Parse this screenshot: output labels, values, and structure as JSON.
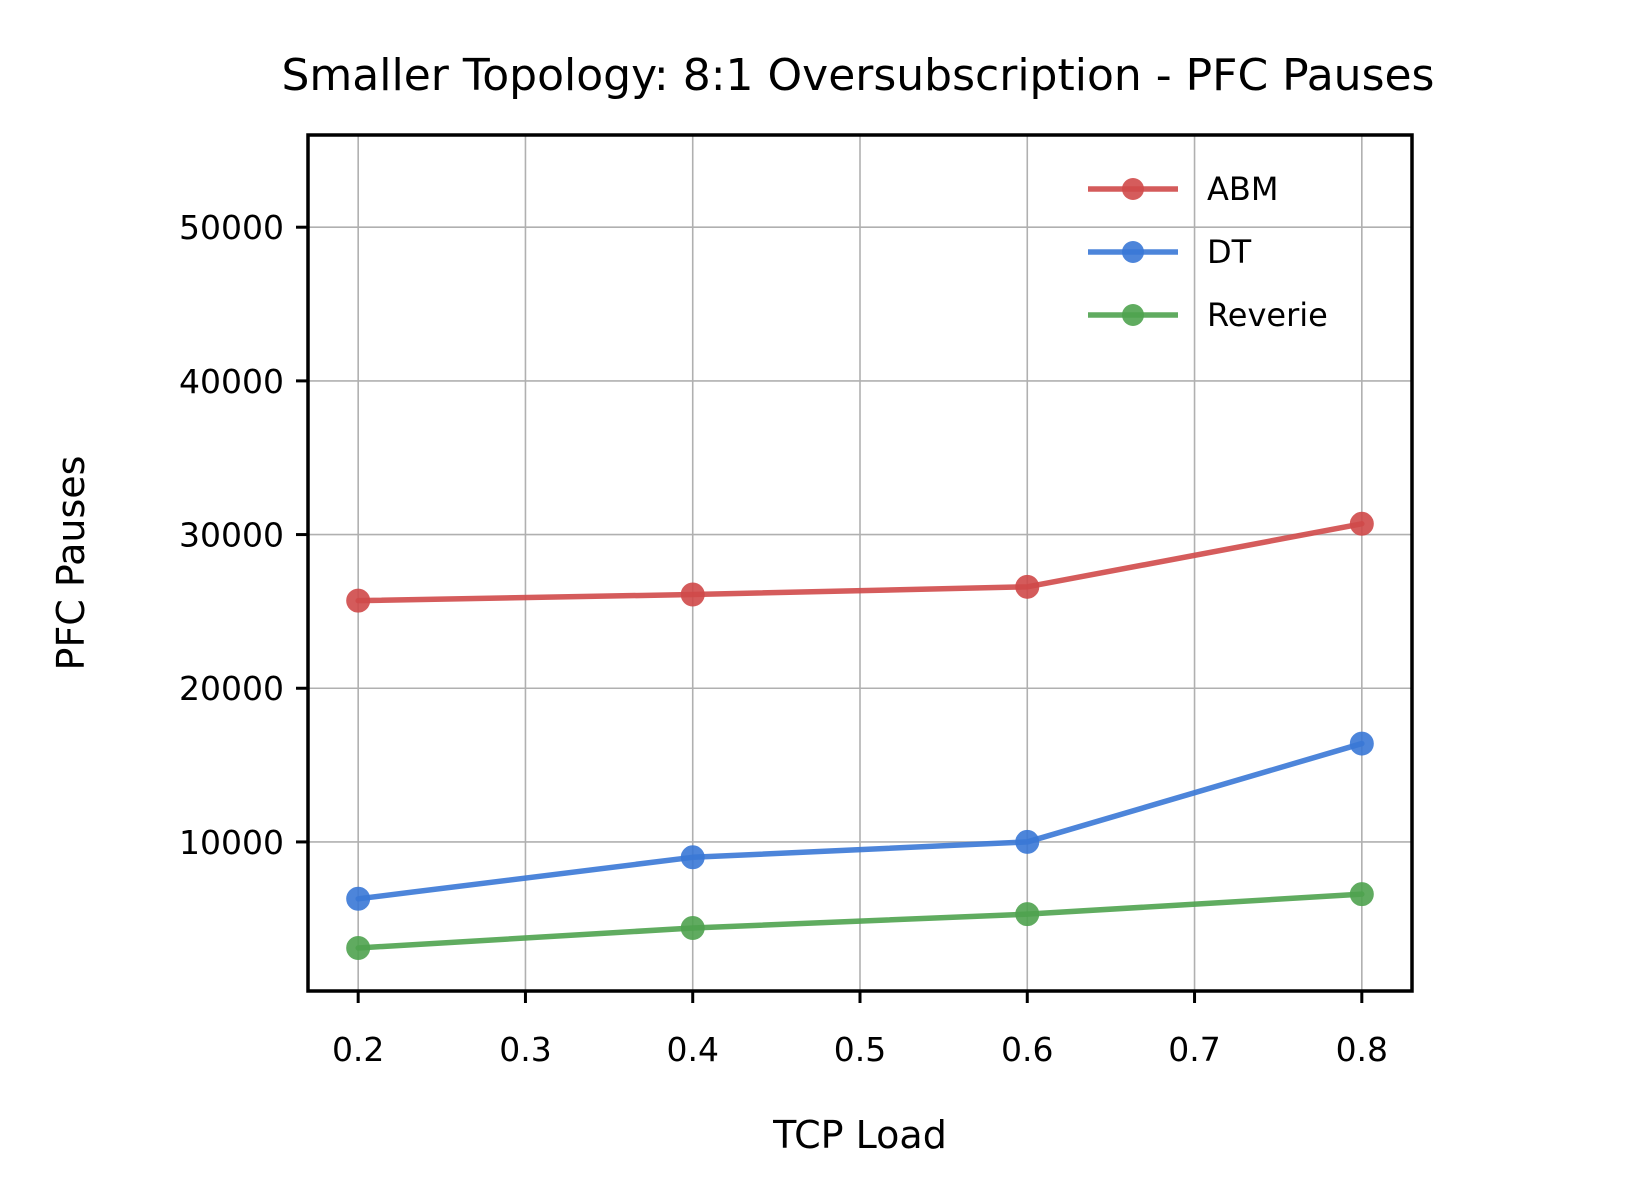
{
  "chart_data": {
    "type": "line",
    "title": "Smaller Topology: 8:1 Oversubscription - PFC Pauses",
    "xlabel": "TCP Load",
    "ylabel": "PFC Pauses",
    "xlim": [
      0.17,
      0.83
    ],
    "ylim": [
      300,
      56000
    ],
    "xticks": [
      0.2,
      0.3,
      0.4,
      0.5,
      0.6,
      0.7,
      0.8
    ],
    "xtick_labels": [
      "0.2",
      "0.3",
      "0.4",
      "0.5",
      "0.6",
      "0.7",
      "0.8"
    ],
    "yticks": [
      10000,
      20000,
      30000,
      40000,
      50000
    ],
    "ytick_labels": [
      "10000",
      "20000",
      "30000",
      "40000",
      "50000"
    ],
    "grid": true,
    "legend_position": "top-right",
    "x": [
      0.2,
      0.4,
      0.6,
      0.8
    ],
    "series": [
      {
        "name": "ABM",
        "color": "#d04a4a",
        "values": [
          25700,
          26100,
          26600,
          30700
        ]
      },
      {
        "name": "DT",
        "color": "#3a78d6",
        "values": [
          6300,
          9000,
          10000,
          16400
        ]
      },
      {
        "name": "Reverie",
        "color": "#4fa34f",
        "values": [
          3100,
          4400,
          5300,
          6600
        ]
      }
    ]
  }
}
